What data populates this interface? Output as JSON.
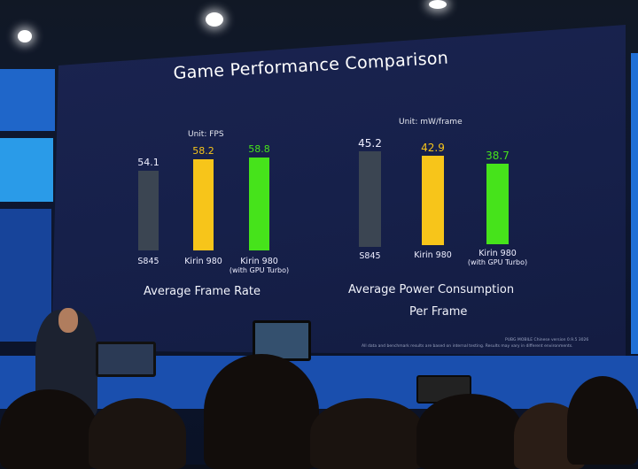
{
  "slide": {
    "title": "Game Performance Comparison",
    "footnote_line1": "PUBG MOBILE Chinese version 0.9.5 3026",
    "footnote_line2": "All data and benchmark results are based on internal testing. Results may vary in different environments."
  },
  "colors": {
    "s845": "#3b4552",
    "kirin980": "#f7c51a",
    "kirin980_gpu_turbo": "#46e31b",
    "slide_bg": "#18214a"
  },
  "chart_data": [
    {
      "type": "bar",
      "title": "Average Frame Rate",
      "unit_label": "Unit: FPS",
      "categories": [
        "S845",
        "Kirin 980",
        "Kirin 980"
      ],
      "category_sublabels": [
        "",
        "",
        "(with GPU Turbo)"
      ],
      "values": [
        54.1,
        58.2,
        58.8
      ],
      "value_labels": [
        "54.1",
        "58.2",
        "58.8"
      ]
    },
    {
      "type": "bar",
      "title": "Average Power Consumption",
      "title_line2": "Per Frame",
      "unit_label": "Unit: mW/frame",
      "categories": [
        "S845",
        "Kirin 980",
        "Kirin 980"
      ],
      "category_sublabels": [
        "",
        "",
        "(with GPU Turbo)"
      ],
      "values": [
        45.2,
        42.9,
        38.7
      ],
      "value_labels": [
        "45.2",
        "42.9",
        "38.7"
      ]
    }
  ]
}
